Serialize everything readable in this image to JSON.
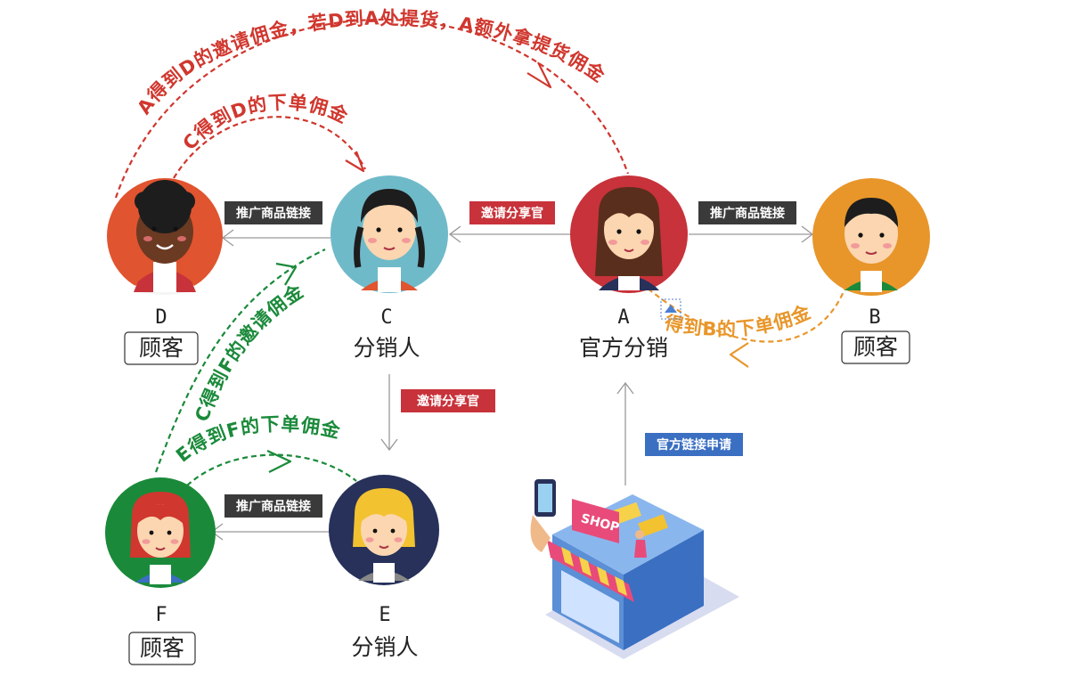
{
  "colors": {
    "red": "#d0372e",
    "green": "#1a8a3a",
    "orange": "#e8962a",
    "tag_dark": "#3a3a3a",
    "tag_red": "#c8323a",
    "tag_blue": "#3a6fc2",
    "arrow_gray": "#999999"
  },
  "nodes": {
    "D": {
      "letter": "D",
      "role": "顾客",
      "bg": "#e0542f"
    },
    "C": {
      "letter": "C",
      "role": "分销人",
      "bg": "#6fbac9"
    },
    "A": {
      "letter": "A",
      "role": "官方分销",
      "bg": "#c8323a"
    },
    "B": {
      "letter": "B",
      "role": "顾客",
      "bg": "#e8962a"
    },
    "F": {
      "letter": "F",
      "role": "顾客",
      "bg": "#1a8a3a"
    },
    "E": {
      "letter": "E",
      "role": "分销人",
      "bg": "#27315a"
    }
  },
  "tags": {
    "c_to_d": "推广商品链接",
    "a_to_c": "邀请分享官",
    "a_to_b": "推广商品链接",
    "c_to_e": "邀请分享官",
    "e_to_f": "推广商品链接",
    "shop_to_a": "官方链接申请"
  },
  "curves": {
    "d_to_a": "A得到D的邀请佣金，若D到A处提货，A额外拿提货佣金",
    "d_to_c": "C得到D的下单佣金",
    "b_to_a": "得到B的下单佣金",
    "f_to_c": "C得到F的邀请佣金",
    "f_to_e": "E得到F的下单佣金"
  },
  "shop": {
    "sign": "SHOP"
  }
}
